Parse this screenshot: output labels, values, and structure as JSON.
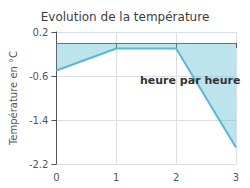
{
  "chart_data": {
    "type": "area",
    "title": "Evolution de la température",
    "xlabel": "heure par heure",
    "ylabel": "Température en °C",
    "x": [
      0,
      1,
      2,
      3
    ],
    "values": [
      -0.5,
      -0.1,
      -0.1,
      -1.9
    ],
    "color": "#5ab8d0",
    "xlim": [
      0,
      3
    ],
    "ylim": [
      -2.2,
      0.2
    ],
    "xticks": [
      0,
      1,
      2,
      3
    ],
    "yticks": [
      0.2,
      -0.6,
      -1.4,
      -2.2
    ],
    "grid": true
  }
}
